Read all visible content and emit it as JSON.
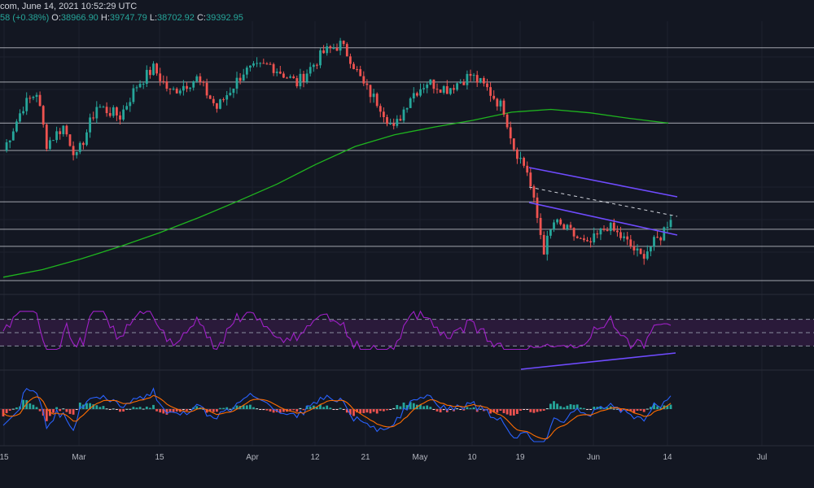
{
  "header": {
    "source_text": "com, June 14, 2021 10:52:29 UTC",
    "change_text": "58 (+0.38%)",
    "ohlc": [
      {
        "label": "O:",
        "value": "38966.90"
      },
      {
        "label": "H:",
        "value": "39747.79"
      },
      {
        "label": "L:",
        "value": "38702.92"
      },
      {
        "label": "C:",
        "value": "39392.95"
      }
    ]
  },
  "colors": {
    "background": "#131722",
    "bull": "#26a69a",
    "bear": "#ef5350",
    "ma": "#1fb51f",
    "rsi": "#a020c8",
    "rsi_band": "#2a1a3a",
    "trendline": "#6f4bff",
    "macd": "#2962ff",
    "signal": "#ff6d00",
    "hline": "#d1d4dc",
    "grid": "#1e222d"
  },
  "chart_data": [
    {
      "type": "candlestick",
      "x_tick_labels": [
        "15",
        "Mar",
        "15",
        "Apr",
        "12",
        "21",
        "May",
        "10",
        "19",
        "Jun",
        "14",
        "Jul"
      ],
      "close_range": [
        30000,
        64800
      ],
      "horizontal_levels": [
        64000,
        59000,
        53000,
        49000,
        41500,
        37500,
        35000,
        30000
      ],
      "ma_200": [
        [
          0,
          30500
        ],
        [
          10,
          31600
        ],
        [
          20,
          33200
        ],
        [
          30,
          35000
        ],
        [
          40,
          37000
        ],
        [
          50,
          39200
        ],
        [
          60,
          41600
        ],
        [
          70,
          44100
        ],
        [
          80,
          47000
        ],
        [
          90,
          49600
        ],
        [
          100,
          51300
        ],
        [
          110,
          52400
        ],
        [
          120,
          53400
        ],
        [
          130,
          54600
        ],
        [
          140,
          55000
        ],
        [
          150,
          54500
        ],
        [
          160,
          53700
        ],
        [
          170,
          53000
        ]
      ]
    },
    {
      "type": "line",
      "name": "RSI",
      "levels": [
        70,
        50,
        30
      ]
    },
    {
      "type": "histogram",
      "name": "MACD"
    }
  ]
}
